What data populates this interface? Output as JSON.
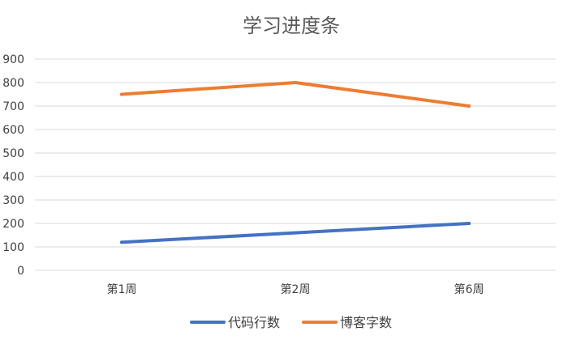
{
  "chart_data": {
    "type": "line",
    "title": "学习进度条",
    "xlabel": "",
    "ylabel": "",
    "categories": [
      "第1周",
      "第2周",
      "第6周"
    ],
    "y_ticks": [
      "0",
      "100",
      "200",
      "300",
      "400",
      "500",
      "600",
      "700",
      "800",
      "900"
    ],
    "ylim": [
      0,
      900
    ],
    "grid": true,
    "legend_position": "bottom",
    "series": [
      {
        "name": "代码行数",
        "values": [
          120,
          160,
          200
        ],
        "color": "#4472C4"
      },
      {
        "name": "博客字数",
        "values": [
          750,
          800,
          700
        ],
        "color": "#ED7D31"
      }
    ]
  }
}
